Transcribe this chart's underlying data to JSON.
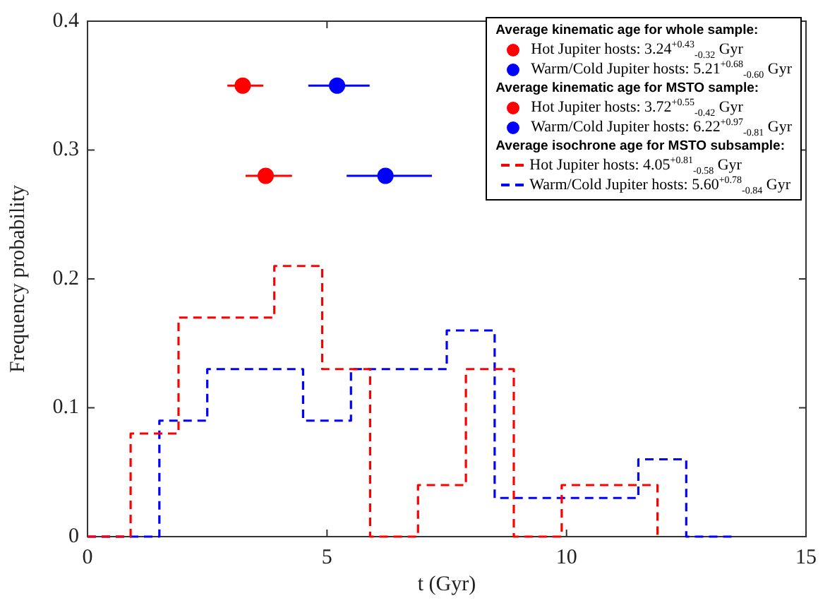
{
  "chart_data": {
    "type": "step",
    "xlabel": "t (Gyr)",
    "ylabel": "Frequency probability",
    "xlim": [
      0,
      15
    ],
    "xticks": [
      0,
      5,
      10,
      15
    ],
    "ylim": [
      0,
      0.4
    ],
    "yticks": [
      0,
      0.1,
      0.2,
      0.3,
      0.4
    ],
    "grid": false,
    "legend": "top right",
    "annotations": [
      "Average kinematic age for whole sample:",
      "Average kinematic age for MSTO sample:",
      "Average isochrone age for MSTO subsample:"
    ],
    "series": [
      {
        "type": "scatter",
        "name": "Hot Jupiter hosts: 3.24$^{+0.43}$$_{-0.32}$ Gyr",
        "color": "#ff0000",
        "x": [
          3.24
        ],
        "values": [
          0.35
        ],
        "xerrors": [
          [
            2.92,
            3.67
          ]
        ],
        "marker": "circle"
      },
      {
        "type": "scatter",
        "name": "Warm/Cold Jupiter hosts: 5.21$^{+0.68}$$_{-0.60}$ Gyr",
        "color": "#0000ff",
        "x": [
          5.21
        ],
        "values": [
          0.35
        ],
        "xerrors": [
          [
            4.61,
            5.89
          ]
        ],
        "marker": "circle"
      },
      {
        "type": "scatter",
        "name": "Hot Jupiter hosts: 3.72$^{+0.55}$$_{-0.42}$ Gyr",
        "color": "#ff0000",
        "x": [
          3.72
        ],
        "values": [
          0.28
        ],
        "xerrors": [
          [
            3.3,
            4.27
          ]
        ],
        "marker": "circle"
      },
      {
        "type": "scatter",
        "name": "Warm/Cold Jupiter hosts: 6.22$^{+0.97}$$_{-0.81}$ Gyr",
        "color": "#0000ff",
        "x": [
          6.22
        ],
        "values": [
          0.28
        ],
        "xerrors": [
          [
            5.41,
            7.19
          ]
        ],
        "marker": "circle"
      },
      {
        "name": "Hot Jupiter hosts: 4.05$^{+0.81}$$_{-0.58}$ Gyr",
        "color": "#ff0000",
        "line_style": "dashed",
        "x": [
          0,
          0.9,
          1.9,
          2.9,
          3.9,
          4.9,
          5.9,
          6.9,
          7.9,
          8.9,
          9.9,
          10.9,
          11.9
        ],
        "values": [
          0,
          0.08,
          0.17,
          0.17,
          0.21,
          0.13,
          0,
          0.04,
          0.13,
          0,
          0.04,
          0.04,
          0
        ]
      },
      {
        "name": "Warm/Cold Jupiter hosts: 5.60$^{+0.78}$$_{-0.84}$ Gyr",
        "color": "#0000ff",
        "line_style": "dashed",
        "x": [
          0,
          1.5,
          2.5,
          3.5,
          4.5,
          5.5,
          6.5,
          7.5,
          8.5,
          9.5,
          10.5,
          11.5,
          12.5,
          13.5
        ],
        "values": [
          0,
          0.09,
          0.13,
          0.13,
          0.09,
          0.13,
          0.13,
          0.16,
          0.03,
          0.03,
          0.03,
          0.06,
          0,
          0
        ]
      }
    ]
  }
}
